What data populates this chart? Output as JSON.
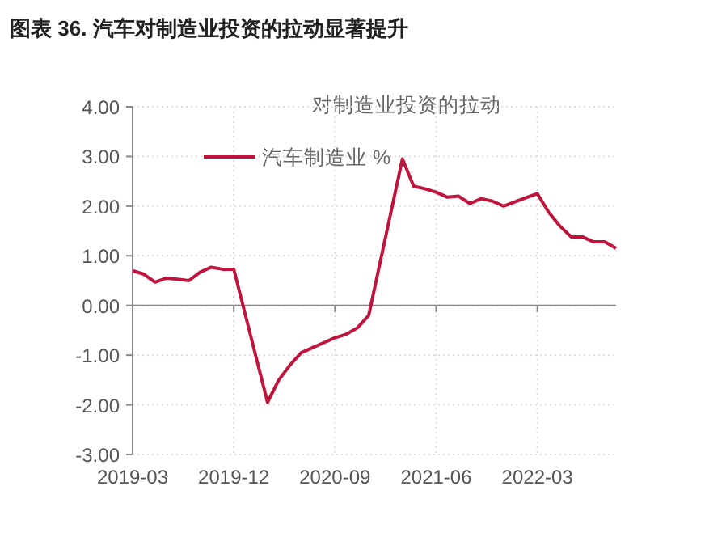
{
  "chart_data": {
    "type": "line",
    "title": "图表 36. 汽车对制造业投资的拉动显著提升",
    "subtitle": "对制造业投资的拉动",
    "x": [
      "2019-03",
      "2019-04",
      "2019-05",
      "2019-06",
      "2019-07",
      "2019-08",
      "2019-09",
      "2019-10",
      "2019-11",
      "2019-12",
      "2020-03",
      "2020-04",
      "2020-05",
      "2020-06",
      "2020-07",
      "2020-08",
      "2020-09",
      "2020-10",
      "2020-11",
      "2020-12",
      "2021-03",
      "2021-04",
      "2021-05",
      "2021-06",
      "2021-07",
      "2021-08",
      "2021-09",
      "2021-10",
      "2021-11",
      "2021-12",
      "2022-02",
      "2022-03",
      "2022-04",
      "2022-05",
      "2022-06",
      "2022-07",
      "2022-08",
      "2022-09",
      "2022-10"
    ],
    "series": [
      {
        "name": "汽车制造业 %",
        "color": "#c0143c",
        "values": [
          0.7,
          0.63,
          0.47,
          0.55,
          0.53,
          0.5,
          0.67,
          0.77,
          0.73,
          0.73,
          -1.95,
          -1.5,
          -1.2,
          -0.95,
          -0.85,
          -0.75,
          -0.65,
          -0.58,
          -0.45,
          -0.2,
          2.95,
          2.4,
          2.35,
          2.28,
          2.18,
          2.2,
          2.05,
          2.15,
          2.1,
          2.0,
          2.17,
          2.25,
          1.88,
          1.6,
          1.38,
          1.38,
          1.28,
          1.28,
          1.15
        ]
      }
    ],
    "xlim": [
      "2019-03",
      "2022-10"
    ],
    "xticks": [
      "2019-03",
      "2019-12",
      "2020-09",
      "2021-06",
      "2022-03"
    ],
    "ylim": [
      -3,
      4
    ],
    "yticks": [
      {
        "value": 4,
        "label": "4.00"
      },
      {
        "value": 3,
        "label": "3.00"
      },
      {
        "value": 2,
        "label": "2.00"
      },
      {
        "value": 1,
        "label": "1.00"
      },
      {
        "value": 0,
        "label": "0.00"
      },
      {
        "value": -1,
        "label": "-1.00"
      },
      {
        "value": -2,
        "label": "-2.00"
      },
      {
        "value": -3,
        "label": "-3.00"
      }
    ],
    "grid": true,
    "legend": "top left",
    "marker": "none",
    "line_style": "solid"
  }
}
